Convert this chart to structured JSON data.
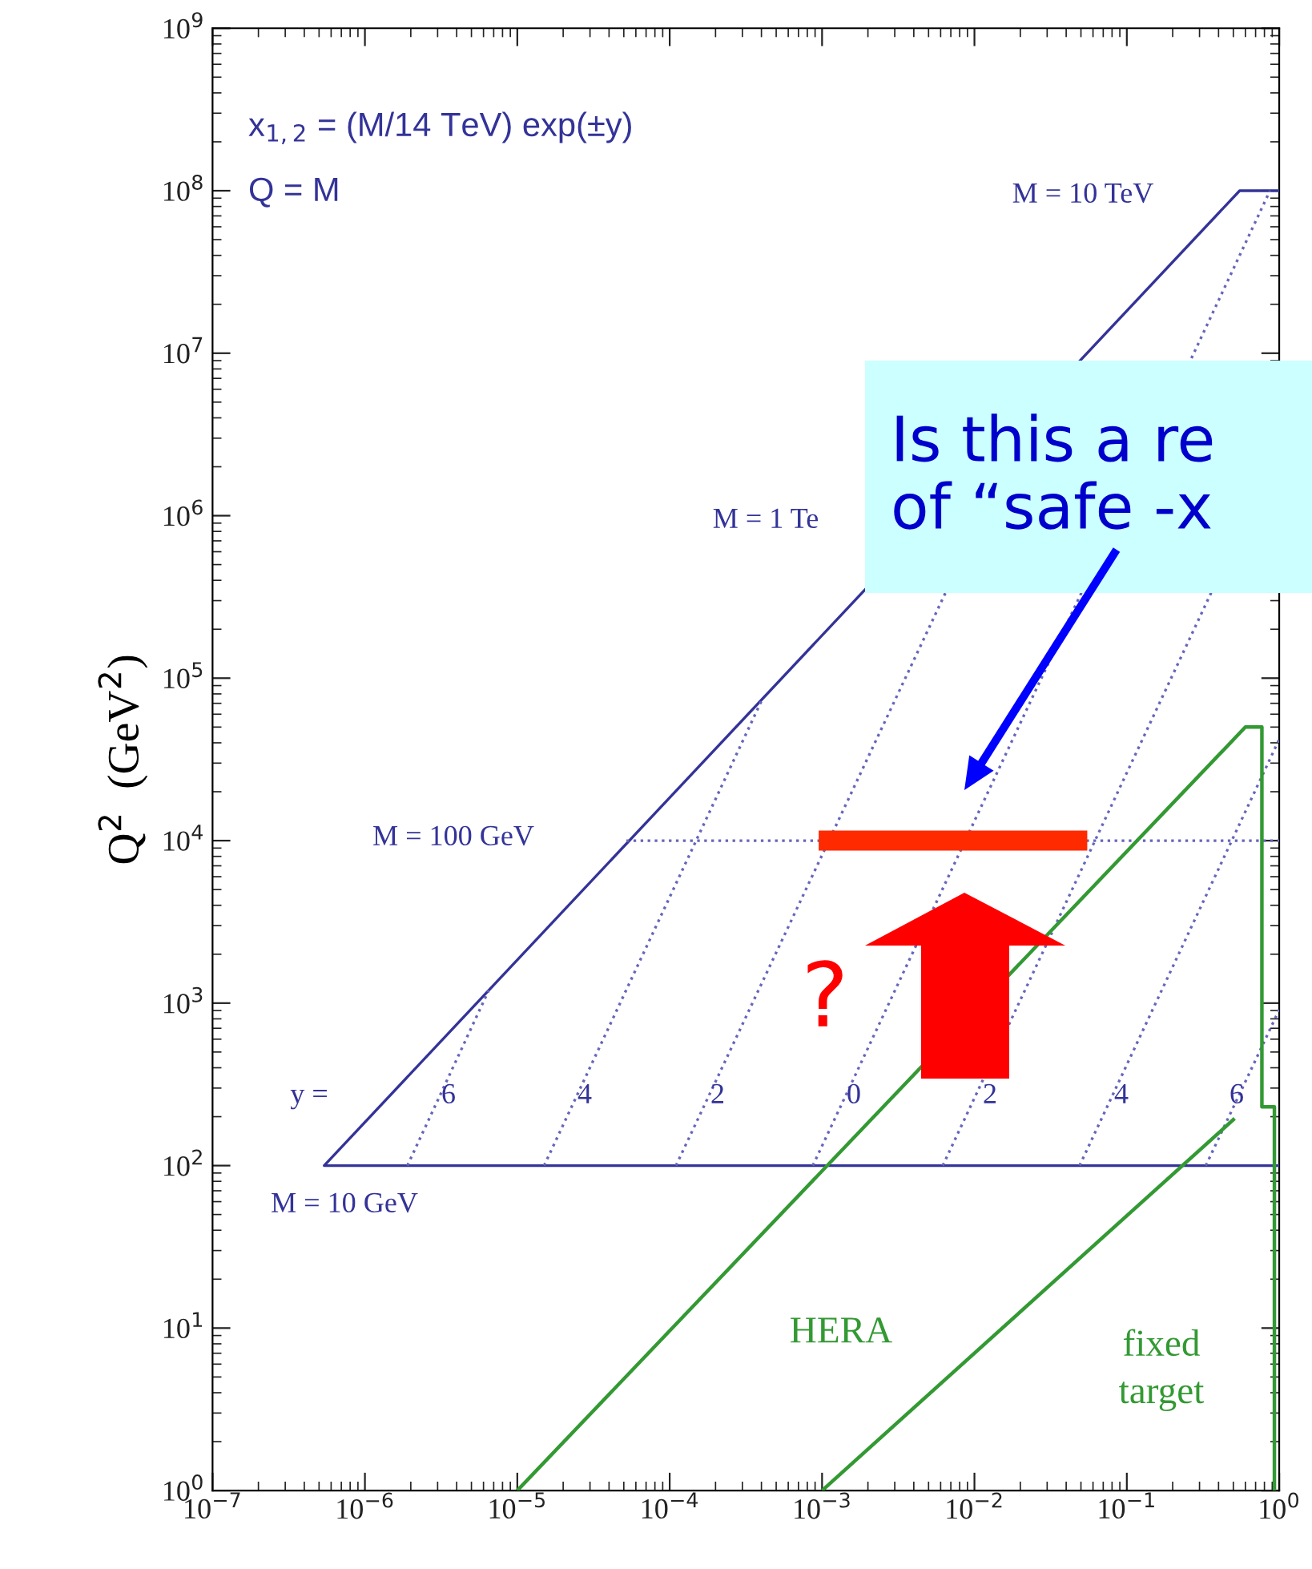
{
  "chart_data": {
    "type": "line",
    "ylabel": "Q$^{2}$  (GeV$^{2}$)",
    "log": "xy",
    "grid": false,
    "legend": false,
    "marker": "none",
    "xlim": [
      1e-07,
      1
    ],
    "ylim": [
      1,
      1000000000.0
    ],
    "xticks": [
      {
        "value": 1e-07,
        "label": "10$^{−7}$"
      },
      {
        "value": 1e-06,
        "label": "10$^{−6}$"
      },
      {
        "value": 1e-05,
        "label": "10$^{−5}$"
      },
      {
        "value": 0.0001,
        "label": "10$^{−4}$"
      },
      {
        "value": 0.001,
        "label": "10$^{−3}$"
      },
      {
        "value": 0.01,
        "label": "10$^{−2}$"
      },
      {
        "value": 0.1,
        "label": "10$^{−1}$"
      },
      {
        "value": 1,
        "label": "10$^{0}$"
      }
    ],
    "yticks": [
      {
        "value": 1,
        "label": "10$^{0}$"
      },
      {
        "value": 10,
        "label": "10$^{1}$"
      },
      {
        "value": 100,
        "label": "10$^{2}$"
      },
      {
        "value": 1000,
        "label": "10$^{3}$"
      },
      {
        "value": 10000,
        "label": "10$^{4}$"
      },
      {
        "value": 100000,
        "label": "10$^{5}$"
      },
      {
        "value": 1000000,
        "label": "10$^{6}$"
      },
      {
        "value": 10000000,
        "label": "10$^{7}$"
      },
      {
        "value": 100000000,
        "label": "10$^{8}$"
      },
      {
        "value": 1000000000,
        "label": "10$^{9}$"
      }
    ],
    "series": [
      {
        "color": "#333399",
        "line_style": "solid",
        "x": [
          1,
          5.4e-07,
          0.55,
          1
        ],
        "values": [
          100,
          100,
          100000000.0,
          100000000.0
        ]
      },
      {
        "color": "#6666bb",
        "line_style": "dotted",
        "x": [
          5.2e-05,
          1
        ],
        "values": [
          10000,
          10000
        ]
      },
      {
        "color": "#6666bb",
        "line_style": "dotted",
        "x": [
          1.9e-06,
          6.5e-06
        ],
        "values": [
          100,
          1200
        ]
      },
      {
        "color": "#6666bb",
        "line_style": "dotted",
        "x": [
          1.5e-05,
          0.00041
        ],
        "values": [
          100,
          76000
        ]
      },
      {
        "color": "#6666bb",
        "line_style": "dotted",
        "x": [
          0.00011,
          0.0065
        ],
        "values": [
          100,
          340000
        ]
      },
      {
        "color": "#6666bb",
        "line_style": "dotted",
        "x": [
          0.00087,
          0.87
        ],
        "values": [
          100,
          100000000.0
        ]
      },
      {
        "color": "#6666bb",
        "line_style": "dotted",
        "x": [
          0.0062,
          0.36
        ],
        "values": [
          100,
          340000
        ]
      },
      {
        "color": "#6666bb",
        "line_style": "dotted",
        "x": [
          0.049,
          1
        ],
        "values": [
          100,
          42000
        ]
      },
      {
        "color": "#6666bb",
        "line_style": "dotted",
        "x": [
          0.33,
          1
        ],
        "values": [
          100,
          910
        ]
      },
      {
        "color": "#339933",
        "line_style": "solid",
        "x": [
          1e-05,
          0.6,
          0.77,
          0.77,
          0.93,
          0.93
        ],
        "values": [
          1,
          50000,
          50000,
          230,
          230,
          1
        ]
      },
      {
        "color": "#339933",
        "line_style": "solid",
        "x": [
          0.001,
          0.51
        ],
        "values": [
          1,
          195
        ]
      },
      {
        "color": "#ff2a00",
        "line_style": "solid",
        "x": [
          0.00095,
          0.055
        ],
        "values": [
          10000,
          10000
        ]
      }
    ],
    "annotations": [
      "x$_{1,2}$ = (M/14 TeV) exp(±y)",
      "Q = M",
      "Is this a re\nof “safe -x",
      "M = 10 TeV",
      "M = 1 Te",
      "M = 100 GeV",
      "M = 10 GeV",
      "y =",
      "6",
      "4",
      "2",
      "0",
      "2",
      "4",
      "6",
      "HERA",
      "fixed\ntarget",
      "?"
    ]
  }
}
